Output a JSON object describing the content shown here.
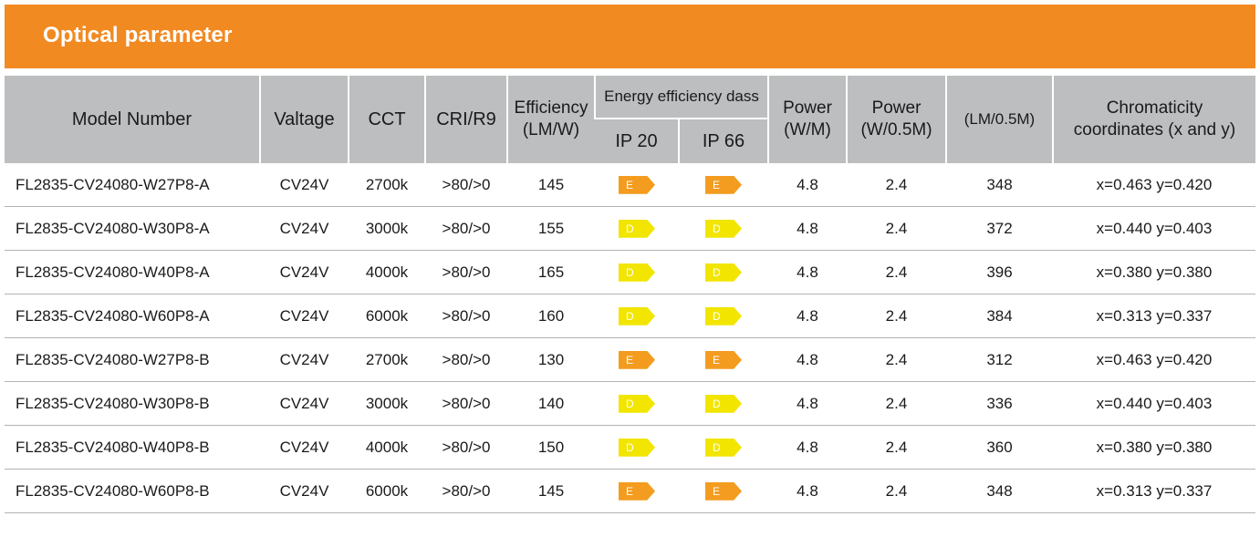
{
  "title": "Optical parameter",
  "headers": {
    "model": "Model Number",
    "voltage": "Valtage",
    "cct": "CCT",
    "cri": "CRI/R9",
    "efficiency": "Efficiency",
    "efficiency_unit": "(LM/W)",
    "energy_class": "Energy efficiency dass",
    "ip20": "IP 20",
    "ip66": "IP 66",
    "power1": "Power",
    "power1_unit": "(W/M)",
    "power2": "Power",
    "power2_unit": "(W/0.5M)",
    "lm": "(LM/0.5M)",
    "chroma": "Chromaticity",
    "chroma_unit": "coordinates (x and y)"
  },
  "badge_colors": {
    "E": "#f39c1f",
    "D": "#f2e500"
  },
  "rows": [
    {
      "model": "FL2835-CV24080-W27P8-A",
      "voltage": "CV24V",
      "cct": "2700k",
      "cri": ">80/>0",
      "eff": "145",
      "ip20": "E",
      "ip66": "E",
      "pw": "4.8",
      "p05": "2.4",
      "lm": "348",
      "chroma": "x=0.463 y=0.420"
    },
    {
      "model": "FL2835-CV24080-W30P8-A",
      "voltage": "CV24V",
      "cct": "3000k",
      "cri": ">80/>0",
      "eff": "155",
      "ip20": "D",
      "ip66": "D",
      "pw": "4.8",
      "p05": "2.4",
      "lm": "372",
      "chroma": "x=0.440 y=0.403"
    },
    {
      "model": "FL2835-CV24080-W40P8-A",
      "voltage": "CV24V",
      "cct": "4000k",
      "cri": ">80/>0",
      "eff": "165",
      "ip20": "D",
      "ip66": "D",
      "pw": "4.8",
      "p05": "2.4",
      "lm": "396",
      "chroma": "x=0.380 y=0.380"
    },
    {
      "model": "FL2835-CV24080-W60P8-A",
      "voltage": "CV24V",
      "cct": "6000k",
      "cri": ">80/>0",
      "eff": "160",
      "ip20": "D",
      "ip66": "D",
      "pw": "4.8",
      "p05": "2.4",
      "lm": "384",
      "chroma": "x=0.313 y=0.337"
    },
    {
      "model": "FL2835-CV24080-W27P8-B",
      "voltage": "CV24V",
      "cct": "2700k",
      "cri": ">80/>0",
      "eff": "130",
      "ip20": "E",
      "ip66": "E",
      "pw": "4.8",
      "p05": "2.4",
      "lm": "312",
      "chroma": "x=0.463 y=0.420"
    },
    {
      "model": "FL2835-CV24080-W30P8-B",
      "voltage": "CV24V",
      "cct": "3000k",
      "cri": ">80/>0",
      "eff": "140",
      "ip20": "D",
      "ip66": "D",
      "pw": "4.8",
      "p05": "2.4",
      "lm": "336",
      "chroma": "x=0.440 y=0.403"
    },
    {
      "model": "FL2835-CV24080-W40P8-B",
      "voltage": "CV24V",
      "cct": "4000k",
      "cri": ">80/>0",
      "eff": "150",
      "ip20": "D",
      "ip66": "D",
      "pw": "4.8",
      "p05": "2.4",
      "lm": "360",
      "chroma": "x=0.380 y=0.380"
    },
    {
      "model": "FL2835-CV24080-W60P8-B",
      "voltage": "CV24V",
      "cct": "6000k",
      "cri": ">80/>0",
      "eff": "145",
      "ip20": "E",
      "ip66": "E",
      "pw": "4.8",
      "p05": "2.4",
      "lm": "348",
      "chroma": "x=0.313 y=0.337"
    }
  ]
}
